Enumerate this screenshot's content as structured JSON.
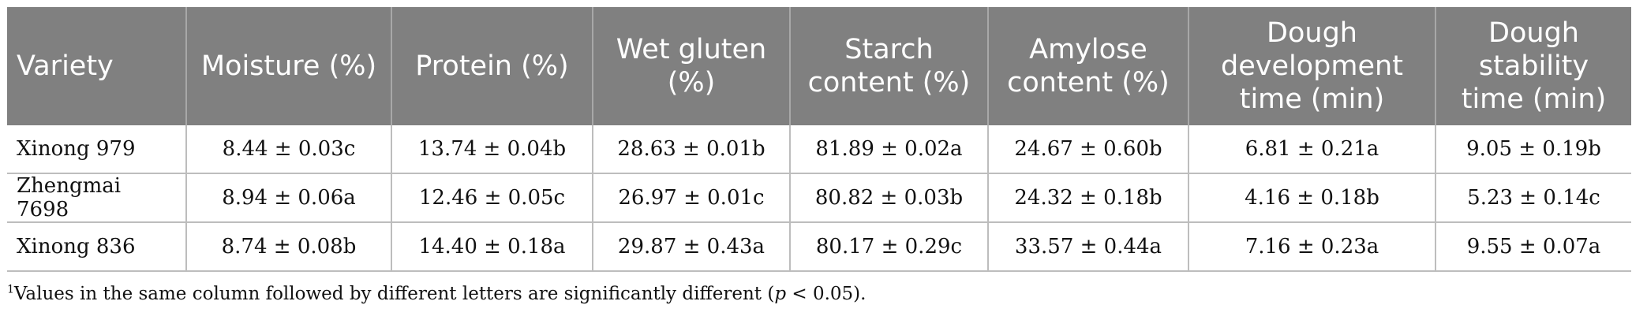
{
  "table": {
    "headers": [
      "Variety",
      "Moisture (%)",
      "Protein (%)",
      "Wet gluten (%)",
      "Starch content (%)",
      "Amylose content (%)",
      "Dough development time (min)",
      "Dough stability time (min)"
    ],
    "rows": [
      [
        "Xinong 979",
        "8.44 ± 0.03c",
        "13.74 ± 0.04b",
        "28.63 ± 0.01b",
        "81.89 ± 0.02a",
        "24.67 ± 0.60b",
        "6.81 ± 0.21a",
        "9.05 ± 0.19b"
      ],
      [
        "Zhengmai 7698",
        "8.94 ± 0.06a",
        "12.46 ± 0.05c",
        "26.97 ± 0.01c",
        "80.82 ± 0.03b",
        "24.32 ± 0.18b",
        "4.16 ± 0.18b",
        "5.23 ± 0.14c"
      ],
      [
        "Xinong 836",
        "8.74 ± 0.08b",
        "14.40 ± 0.18a",
        "29.87 ± 0.43a",
        "80.17 ± 0.29c",
        "33.57 ± 0.44a",
        "7.16 ± 0.23a",
        "9.55 ± 0.07a"
      ]
    ]
  },
  "footnote": {
    "marker": "1",
    "text_before": "Values in the same column followed by different letters are significantly different (",
    "p_symbol": "p",
    "text_after": " < 0.05)."
  }
}
